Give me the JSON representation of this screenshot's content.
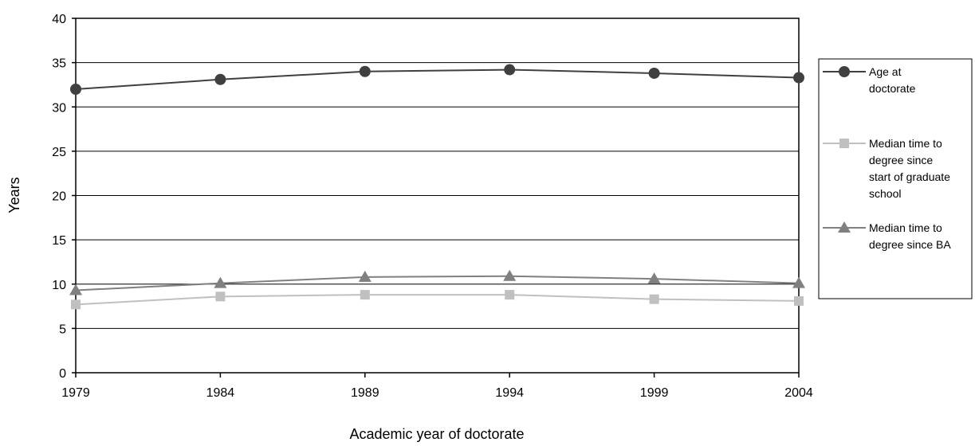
{
  "chart_data": {
    "type": "line",
    "xlabel": "Academic year of doctorate",
    "ylabel": "Years",
    "x": [
      "1979",
      "1984",
      "1989",
      "1994",
      "1999",
      "2004"
    ],
    "ylim": [
      0,
      40
    ],
    "yticks": [
      0,
      5,
      10,
      15,
      20,
      25,
      30,
      35,
      40
    ],
    "grid": true,
    "legend_position": "right",
    "series": [
      {
        "name": "Age at doctorate",
        "legend_lines": [
          "Age at",
          "doctorate"
        ],
        "values": [
          32.0,
          33.1,
          34.0,
          34.2,
          33.8,
          33.3
        ],
        "color": "#404040",
        "marker": "circle"
      },
      {
        "name": "Median time to degree since start of graduate school",
        "legend_lines": [
          "Median time to",
          "degree since",
          "start of graduate",
          "school"
        ],
        "values": [
          7.7,
          8.6,
          8.8,
          8.8,
          8.3,
          8.1
        ],
        "color": "#c0c0c0",
        "marker": "square"
      },
      {
        "name": "Median time to degree since BA",
        "legend_lines": [
          "Median time to",
          "degree since BA"
        ],
        "values": [
          9.3,
          10.1,
          10.8,
          10.9,
          10.6,
          10.1
        ],
        "color": "#808080",
        "marker": "triangle"
      }
    ]
  }
}
